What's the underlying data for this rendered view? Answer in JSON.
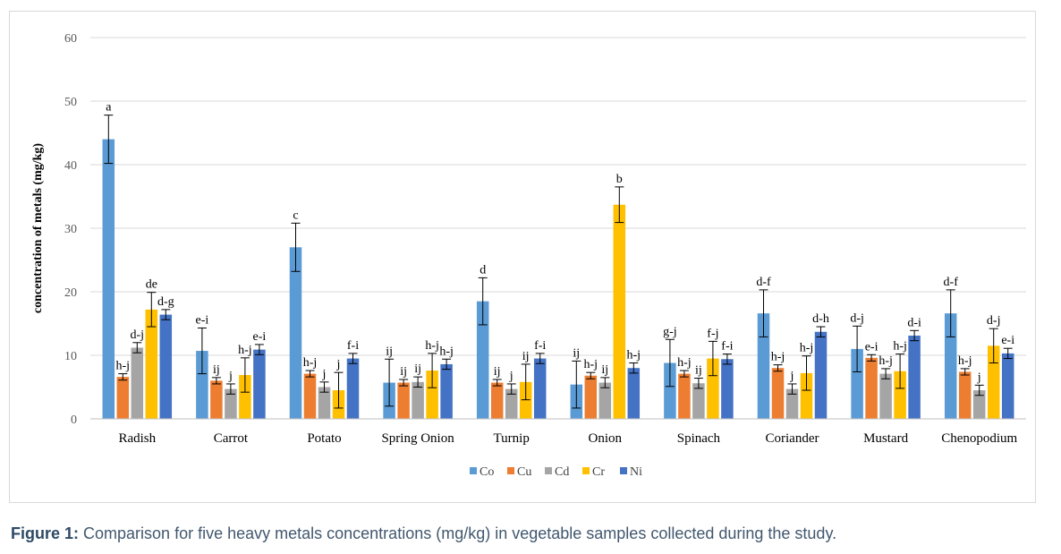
{
  "caption": {
    "label": "Figure 1:",
    "text": "Comparison for five heavy metals concentrations (mg/kg) in vegetable samples collected during the study."
  },
  "chart_data": {
    "type": "bar",
    "title": "",
    "xlabel": "",
    "ylabel": "concentration of metals (mg/kg)",
    "ylim": [
      0,
      60
    ],
    "yticks": [
      0,
      10,
      20,
      30,
      40,
      50,
      60
    ],
    "grid": true,
    "legend_position": "bottom",
    "error_bars": true,
    "categories": [
      "Radish",
      "Carrot",
      "Potato",
      "Spring Onion",
      "Turnip",
      "Onion",
      "Spinach",
      "Coriander",
      "Mustard",
      "Chenopodium"
    ],
    "series": [
      {
        "name": "Co",
        "color": "#5b9bd5",
        "values": [
          44.0,
          10.7,
          27.0,
          5.7,
          18.5,
          5.4,
          8.8,
          16.6,
          11.0,
          16.6
        ],
        "errors": [
          3.8,
          3.6,
          3.8,
          3.7,
          3.7,
          3.7,
          3.7,
          3.7,
          3.6,
          3.7
        ],
        "labels": [
          "a",
          "e-i",
          "c",
          "ij",
          "d",
          "ij",
          "g-j",
          "d-f",
          "d-j",
          "d-f"
        ]
      },
      {
        "name": "Cu",
        "color": "#ed7d31",
        "values": [
          6.6,
          6.0,
          7.1,
          5.7,
          5.7,
          6.8,
          7.1,
          8.0,
          9.6,
          7.4
        ],
        "errors": [
          0.5,
          0.5,
          0.5,
          0.5,
          0.5,
          0.5,
          0.5,
          0.5,
          0.5,
          0.5
        ],
        "labels": [
          "h-j",
          "ij",
          "h-j",
          "ij",
          "ij",
          "h-j",
          "h-j",
          "h-j",
          "e-i",
          "h-j"
        ]
      },
      {
        "name": "Cd",
        "color": "#a5a5a5",
        "values": [
          11.2,
          4.7,
          5.0,
          5.8,
          4.7,
          5.7,
          5.6,
          4.7,
          7.1,
          4.5
        ],
        "errors": [
          0.8,
          0.8,
          0.8,
          0.8,
          0.8,
          0.8,
          0.8,
          0.8,
          0.8,
          0.8
        ],
        "labels": [
          "d-j",
          "j",
          "j",
          "ij",
          "j",
          "ij",
          "ij",
          "j",
          "h-j",
          "j"
        ]
      },
      {
        "name": "Cr",
        "color": "#ffc000",
        "values": [
          17.2,
          6.9,
          4.5,
          7.6,
          5.8,
          33.7,
          9.5,
          7.2,
          7.5,
          11.5
        ],
        "errors": [
          2.7,
          2.7,
          2.8,
          2.7,
          2.8,
          2.8,
          2.7,
          2.7,
          2.7,
          2.7
        ],
        "labels": [
          "de",
          "h-j",
          "j",
          "h-j",
          "ij",
          "b",
          "f-j",
          "h-j",
          "h-j",
          "d-j"
        ]
      },
      {
        "name": "Ni",
        "color": "#4472c4",
        "values": [
          16.4,
          10.9,
          9.5,
          8.6,
          9.5,
          8.0,
          9.4,
          13.7,
          13.1,
          10.3
        ],
        "errors": [
          0.8,
          0.8,
          0.8,
          0.8,
          0.8,
          0.8,
          0.8,
          0.8,
          0.8,
          0.8
        ],
        "labels": [
          "d-g",
          "e-i",
          "f-i",
          "h-j",
          "f-i",
          "h-j",
          "f-i",
          "d-h",
          "d-i",
          "e-i"
        ]
      }
    ]
  }
}
